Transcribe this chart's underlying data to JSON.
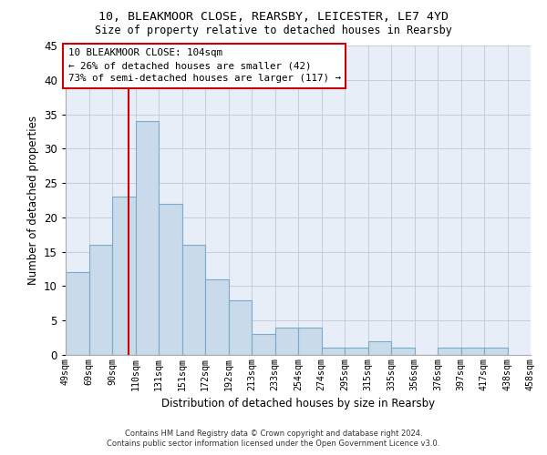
{
  "title1": "10, BLEAKMOOR CLOSE, REARSBY, LEICESTER, LE7 4YD",
  "title2": "Size of property relative to detached houses in Rearsby",
  "xlabel": "Distribution of detached houses by size in Rearsby",
  "ylabel": "Number of detached properties",
  "bar_heights": [
    12,
    16,
    23,
    34,
    22,
    16,
    11,
    8,
    3,
    4,
    4,
    1,
    1,
    2,
    1,
    0,
    1,
    1,
    1
  ],
  "n_bars": 19,
  "tick_labels": [
    "49sqm",
    "69sqm",
    "90sqm",
    "110sqm",
    "131sqm",
    "151sqm",
    "172sqm",
    "192sqm",
    "213sqm",
    "233sqm",
    "254sqm",
    "274sqm",
    "295sqm",
    "315sqm",
    "335sqm",
    "356sqm",
    "376sqm",
    "397sqm",
    "417sqm",
    "438sqm",
    "458sqm"
  ],
  "bar_color": "#c9daea",
  "bar_edge_color": "#7aaac8",
  "vline_color": "#cc0000",
  "vline_bar_index": 2.7,
  "ylim": [
    0,
    45
  ],
  "yticks": [
    0,
    5,
    10,
    15,
    20,
    25,
    30,
    35,
    40,
    45
  ],
  "annotation_box_text": "10 BLEAKMOOR CLOSE: 104sqm\n← 26% of detached houses are smaller (42)\n73% of semi-detached houses are larger (117) →",
  "footer1": "Contains HM Land Registry data © Crown copyright and database right 2024.",
  "footer2": "Contains public sector information licensed under the Open Government Licence v3.0.",
  "background_color": "#ffffff",
  "plot_bg_color": "#e8eef8",
  "grid_color": "#c0c8d8"
}
